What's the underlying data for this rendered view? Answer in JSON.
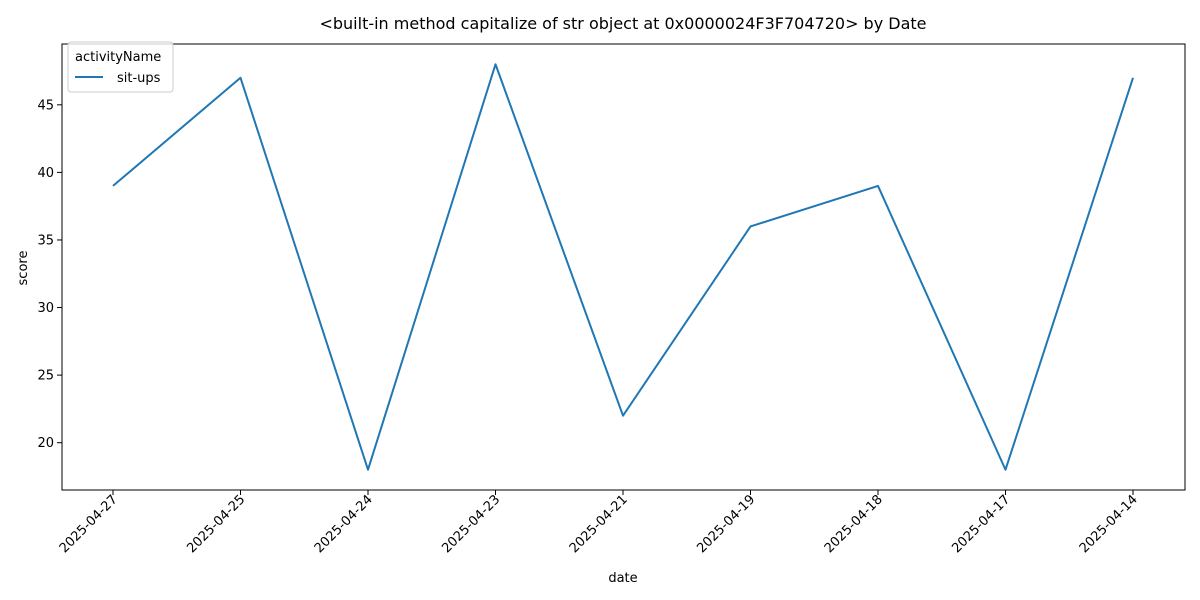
{
  "chart_data": {
    "type": "line",
    "title": "<built-in method capitalize of str object at 0x0000024F3F704720> by Date",
    "xlabel": "date",
    "ylabel": "score",
    "categories": [
      "2025-04-27",
      "2025-04-25",
      "2025-04-24",
      "2025-04-23",
      "2025-04-21",
      "2025-04-19",
      "2025-04-18",
      "2025-04-17",
      "2025-04-14"
    ],
    "series": [
      {
        "name": "sit-ups",
        "values": [
          39,
          47,
          18,
          48,
          22,
          36,
          39,
          18,
          47
        ],
        "color": "#1f77b4"
      }
    ],
    "y_ticks": [
      20,
      25,
      30,
      35,
      40,
      45
    ],
    "ylim": [
      16.5,
      49.5
    ],
    "grid": false,
    "legend": {
      "title": "activityName",
      "placement": "top-left"
    }
  }
}
